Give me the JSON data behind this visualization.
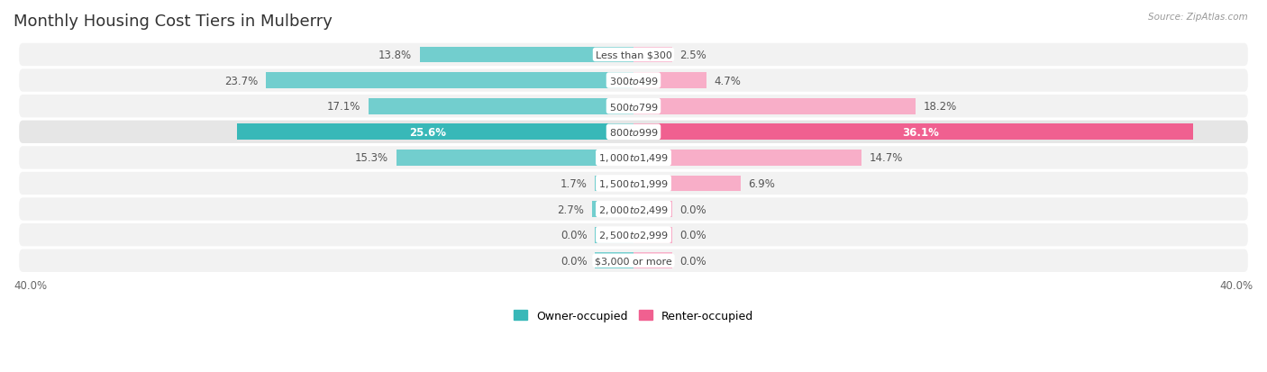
{
  "title": "Monthly Housing Cost Tiers in Mulberry",
  "source": "Source: ZipAtlas.com",
  "categories": [
    "Less than $300",
    "$300 to $499",
    "$500 to $799",
    "$800 to $999",
    "$1,000 to $1,499",
    "$1,500 to $1,999",
    "$2,000 to $2,499",
    "$2,500 to $2,999",
    "$3,000 or more"
  ],
  "owner_values": [
    13.8,
    23.7,
    17.1,
    25.6,
    15.3,
    1.7,
    2.7,
    0.0,
    0.0
  ],
  "renter_values": [
    2.5,
    4.7,
    18.2,
    36.1,
    14.7,
    6.9,
    0.0,
    0.0,
    0.0
  ],
  "owner_color_dark": "#38b8b8",
  "owner_color_light": "#72cece",
  "renter_color_dark": "#f06090",
  "renter_color_light": "#f8aec8",
  "row_bg_normal": "#f2f2f2",
  "row_bg_highlight": "#e6e6e6",
  "highlight_row": 3,
  "xlim": 40.0,
  "min_bar_width": 2.5,
  "owner_label": "Owner-occupied",
  "renter_label": "Renter-occupied",
  "title_fontsize": 13,
  "bar_height": 0.62,
  "value_fontsize": 8.5,
  "cat_fontsize": 8.0
}
